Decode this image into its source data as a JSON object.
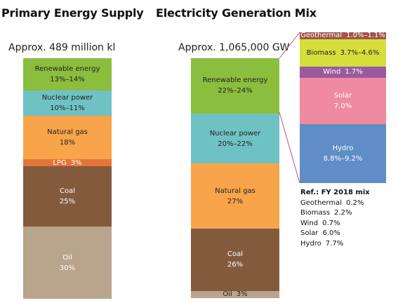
{
  "chart_data": [
    {
      "type": "stacked-bar",
      "title": "Primary Energy Supply",
      "total": "Approx. 489 million kl",
      "segments": [
        {
          "name": "Renewable energy",
          "label": "13%–14%",
          "value": 13.5,
          "color": "#8bbd3e",
          "text_color": "#222222"
        },
        {
          "name": "Nuclear power",
          "label": "10%–11%",
          "value": 10.5,
          "color": "#6fc2c3",
          "text_color": "#222222"
        },
        {
          "name": "Natural gas",
          "label": "18%",
          "value": 18,
          "color": "#f7a44a",
          "text_color": "#222222"
        },
        {
          "name": "LPG",
          "label": "3%",
          "value": 3,
          "color": "#e2763a",
          "text_color": "#ffffff",
          "inline": true
        },
        {
          "name": "Coal",
          "label": "25%",
          "value": 25,
          "color": "#845a3d",
          "text_color": "#ffffff"
        },
        {
          "name": "Oil",
          "label": "30%",
          "value": 30,
          "color": "#b9a48c",
          "text_color": "#ffffff"
        }
      ]
    },
    {
      "type": "stacked-bar",
      "title": "Electricity Generation Mix",
      "total": "Approx. 1,065,000 GW",
      "segments": [
        {
          "name": "Renewable energy",
          "label": "22%–24%",
          "value": 23,
          "color": "#8bbd3e",
          "text_color": "#222222"
        },
        {
          "name": "Nuclear power",
          "label": "20%–22%",
          "value": 21,
          "color": "#6fc2c3",
          "text_color": "#222222"
        },
        {
          "name": "Natural gas",
          "label": "27%",
          "value": 27,
          "color": "#f7a44a",
          "text_color": "#222222"
        },
        {
          "name": "Coal",
          "label": "26%",
          "value": 26,
          "color": "#845a3d",
          "text_color": "#ffffff"
        },
        {
          "name": "Oil",
          "label": "3%",
          "value": 3,
          "color": "#b9a48c",
          "text_color": "#222222",
          "inline": true
        }
      ]
    },
    {
      "type": "stacked-bar",
      "title": "",
      "segments": [
        {
          "name": "Geothermal",
          "label": "1.0%–1.1%",
          "value": 1.05,
          "color": "#a0554a",
          "text_color": "#ffffff",
          "inline": true
        },
        {
          "name": "Biomass",
          "label": "3.7%–4.6%",
          "value": 4.15,
          "color": "#d4df3c",
          "text_color": "#222222",
          "inline": true
        },
        {
          "name": "Wind",
          "label": "1.7%",
          "value": 1.7,
          "color": "#9a5a9e",
          "text_color": "#ffffff",
          "inline": true
        },
        {
          "name": "Solar",
          "label": "7.0%",
          "value": 7.0,
          "color": "#ef8aa0",
          "text_color": "#ffffff"
        },
        {
          "name": "Hydro",
          "label": "8.8%–9.2%",
          "value": 9.0,
          "color": "#5f8dc6",
          "text_color": "#ffffff"
        }
      ]
    }
  ],
  "reference": {
    "title": "Ref.: FY 2018 mix",
    "items": [
      {
        "name": "Geothermal",
        "value": "0.2%"
      },
      {
        "name": "Biomass",
        "value": "2.2%"
      },
      {
        "name": "Wind",
        "value": "0.7%"
      },
      {
        "name": "Solar",
        "value": "6.0%"
      },
      {
        "name": "Hydro",
        "value": "7.7%"
      }
    ]
  },
  "colors": {
    "connector": "#c0507a"
  }
}
